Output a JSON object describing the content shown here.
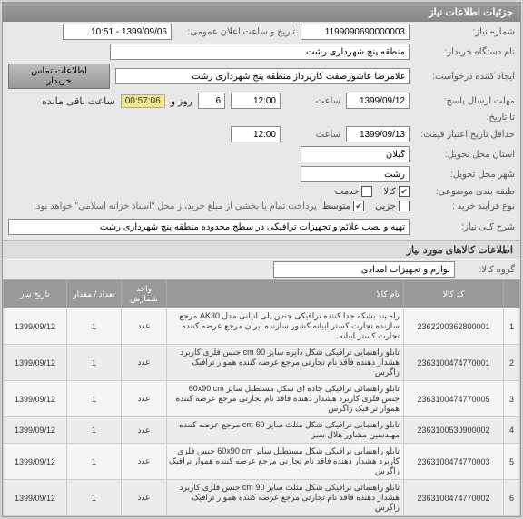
{
  "panel1_title": "جزئیات اطلاعات نیاز",
  "f": {
    "niaz_num_lbl": "شماره نیاز:",
    "niaz_num": "1199090690000003",
    "public_date_lbl": "تاریخ و ساعت اعلان عمومی:",
    "public_date": "1399/09/06 - 10:51",
    "buyer_lbl": "نام دستگاه خریدار:",
    "buyer": "منطقه پنج شهرداری رشت",
    "creator_lbl": "ایجاد کننده درخواست:",
    "creator": "غلامرضا عاشورصفت کارپرداز منطقه پنج شهرداری رشت",
    "contact_btn": "اطلاعات تماس خریدار",
    "deadline_lbl": "مهلت ارسال پاسخ:",
    "deadline_date": "1399/09/12",
    "time_lbl": "ساعت",
    "deadline_time": "12:00",
    "days_lbl": "روز و",
    "days_left": "6",
    "timer": "00:57:06",
    "remain_lbl": "ساعت باقی مانده",
    "fromto_lbl": "تا تاریخ:",
    "credit_lbl": "حداقل تاریخ اعتبار قیمت:",
    "credit_date": "1399/09/13",
    "credit_time": "12:00",
    "province_lbl": "استان محل تحویل:",
    "province": "گیلان",
    "city_lbl": "شهر محل تحویل:",
    "city": "رشت",
    "cat_lbl": "طبقه بندی موضوعی:",
    "cat_goods": "کالا",
    "cat_service": "خدمت",
    "proc_lbl": "نوع فرآیند خرید :",
    "proc_small": "جزیی",
    "proc_med": "متوسط",
    "proc_note": "پرداخت تمام یا بخشی از مبلغ خرید،از محل \"اسناد خزانه اسلامی\" خواهد بود.",
    "desc_lbl": "شرح کلی نیاز:",
    "desc": "تهیه و نصب علائم و تجهیزات ترافیکی در سطح محدوده منطقه پنج شهرداری رشت"
  },
  "panel2_title": "اطلاعات کالاهای مورد نیاز",
  "group_lbl": "گروه کالا:",
  "group": "لوازم و تجهیزات امدادی",
  "cols": {
    "idx": "",
    "code": "کد کالا",
    "name": "نام کالا",
    "unit": "واحد شمارش",
    "qty": "تعداد / مقدار",
    "date": "تاریخ نیاز"
  },
  "rows": [
    {
      "idx": "1",
      "code": "2362200362800001",
      "name": "راه بند بشکه جدا کننده ترافیکی جنس پلی اتیلنی مدل AK30 مرجع سازنده تجارت کستر ابیانه کشور سازنده ایران مرجع عرضه کننده تجارت کستر ابیانه",
      "unit": "عدد",
      "qty": "1",
      "date": "1399/09/12"
    },
    {
      "idx": "2",
      "code": "2363100474770001",
      "name": "تابلو راهنمایی ترافیکی شکل دایره سایز 90 cm جنس فلزی کاربرد هشدار دهنده فاقد نام تجارتی مرجع عرضه کننده هموار ترافیک زاگرس",
      "unit": "عدد",
      "qty": "1",
      "date": "1399/09/12"
    },
    {
      "idx": "3",
      "code": "2363100474770005",
      "name": "تابلو راهنمائی ترافیکی جاده ای شکل مستطیل سایز 60x90 cm جنس فلزی کاربرد هشدار دهنده فاقد نام تجارتی مرجع عرضه کننده هموار ترافیک زاگرس",
      "unit": "عدد",
      "qty": "1",
      "date": "1399/09/12"
    },
    {
      "idx": "4",
      "code": "2363100530900002",
      "name": "تابلو راهنمایی ترافیکی شکل مثلث سایز 60 cm مرجع عرضه کننده مهندسین مشاور هلال سبز",
      "unit": "عدد",
      "qty": "1",
      "date": "1399/09/12"
    },
    {
      "idx": "5",
      "code": "2363100474770003",
      "name": "تابلو راهنمایی ترافیکی شکل مستطیل سایز 60x90 cm جنس فلزی کاربرد هشدار دهنده فاقد نام تجارتی مرجع عرضه کننده هموار ترافیک زاگرس",
      "unit": "عدد",
      "qty": "1",
      "date": "1399/09/12"
    },
    {
      "idx": "6",
      "code": "2363100474770002",
      "name": "تابلو راهنمائی ترافیکی شکل مثلث سایز 90 cm جنس فلزی کاربرد هشدار دهنده فاقد نام تجارتی مرجع عرضه کننده هموار ترافیک زاگرس",
      "unit": "عدد",
      "qty": "1",
      "date": "1399/09/12"
    }
  ]
}
